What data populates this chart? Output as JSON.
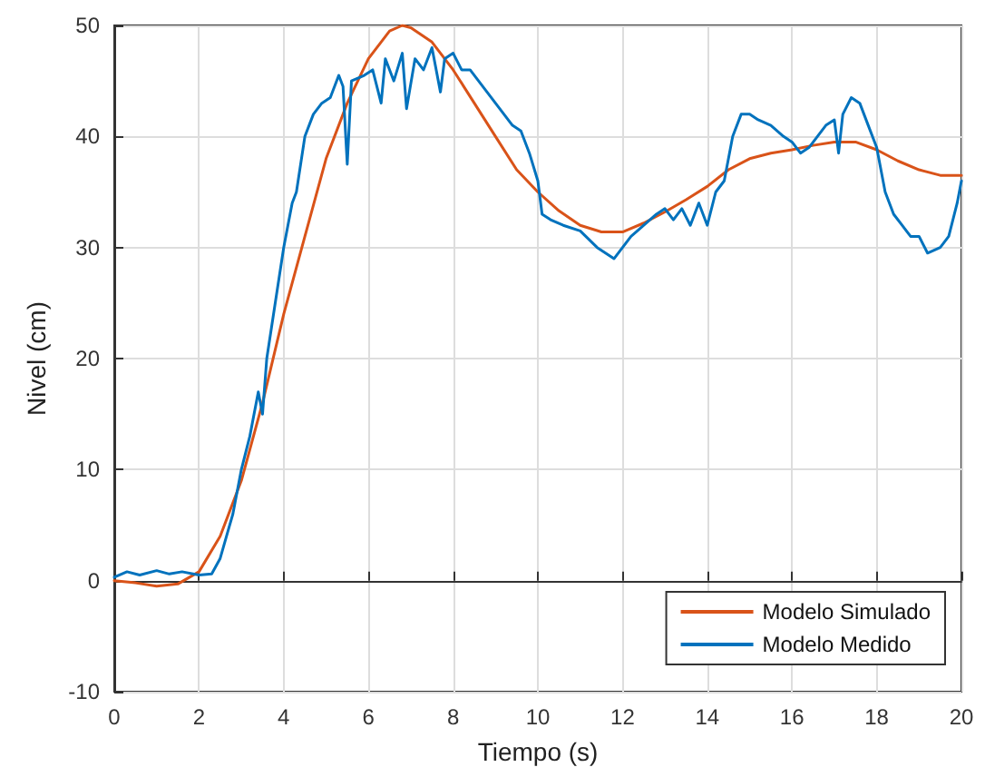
{
  "chart_data": {
    "type": "line",
    "xlabel": "Tiempo (s)",
    "ylabel": "Nivel (cm)",
    "xlim": [
      0,
      20
    ],
    "ylim": [
      -10,
      50
    ],
    "xticks": [
      0,
      2,
      4,
      6,
      8,
      10,
      12,
      14,
      16,
      18,
      20
    ],
    "yticks": [
      -10,
      0,
      10,
      20,
      30,
      40,
      50
    ],
    "grid": true,
    "legend": "bottom right",
    "marker": "none",
    "line_style": "solid",
    "series": [
      {
        "name": "Modelo Simulado",
        "color": "#d95319",
        "x": [
          0,
          0.5,
          1,
          1.5,
          2,
          2.5,
          3,
          3.5,
          4,
          4.5,
          5,
          5.5,
          6,
          6.5,
          6.8,
          7,
          7.5,
          8,
          8.5,
          9,
          9.5,
          10,
          10.5,
          11,
          11.5,
          12,
          12.5,
          13,
          13.5,
          14,
          14.5,
          15,
          15.5,
          16,
          16.5,
          17,
          17.5,
          18,
          18.5,
          19,
          19.5,
          20
        ],
        "values": [
          0,
          -0.2,
          -0.5,
          -0.3,
          0.8,
          4,
          9,
          16,
          24,
          31,
          38,
          43,
          47,
          49.5,
          50,
          49.8,
          48.5,
          46,
          43,
          40,
          37,
          35,
          33.3,
          32,
          31.4,
          31.4,
          32.2,
          33.2,
          34.3,
          35.5,
          37,
          38,
          38.5,
          38.8,
          39.2,
          39.5,
          39.5,
          38.8,
          37.8,
          37,
          36.5,
          36.5
        ]
      },
      {
        "name": "Modelo Medido",
        "color": "#0072bd",
        "x": [
          0,
          0.3,
          0.6,
          1,
          1.3,
          1.6,
          2,
          2.3,
          2.5,
          2.8,
          3,
          3.2,
          3.4,
          3.5,
          3.6,
          3.8,
          4,
          4.2,
          4.3,
          4.5,
          4.7,
          4.9,
          5.1,
          5.3,
          5.4,
          5.5,
          5.6,
          5.9,
          6.1,
          6.3,
          6.4,
          6.6,
          6.8,
          6.9,
          7.1,
          7.3,
          7.5,
          7.7,
          7.8,
          8,
          8.2,
          8.4,
          8.6,
          8.8,
          9,
          9.2,
          9.4,
          9.6,
          9.8,
          10,
          10.1,
          10.3,
          10.6,
          11,
          11.4,
          11.8,
          12,
          12.2,
          12.5,
          12.8,
          13,
          13.2,
          13.4,
          13.6,
          13.8,
          14,
          14.2,
          14.4,
          14.6,
          14.8,
          15,
          15.2,
          15.5,
          15.8,
          16,
          16.2,
          16.4,
          16.6,
          16.8,
          17,
          17.1,
          17.2,
          17.4,
          17.6,
          17.8,
          18,
          18.2,
          18.4,
          18.6,
          18.8,
          19,
          19.2,
          19.5,
          19.7,
          19.9,
          20
        ],
        "values": [
          0.3,
          0.8,
          0.5,
          0.9,
          0.6,
          0.8,
          0.5,
          0.6,
          2,
          6,
          10,
          13,
          17,
          15,
          20,
          25,
          30,
          34,
          35,
          40,
          42,
          43,
          43.5,
          45.5,
          44.5,
          37.5,
          45,
          45.5,
          46,
          43,
          47,
          45,
          47.5,
          42.5,
          47,
          46,
          48,
          44,
          47,
          47.5,
          46,
          46,
          45,
          44,
          43,
          42,
          41,
          40.5,
          38.5,
          36,
          33,
          32.5,
          32,
          31.5,
          30,
          29,
          30,
          31,
          32,
          33,
          33.5,
          32.5,
          33.5,
          32,
          34,
          32,
          35,
          36,
          40,
          42,
          42,
          41.5,
          41,
          40,
          39.5,
          38.5,
          39,
          40,
          41,
          41.5,
          38.5,
          42,
          43.5,
          43,
          41,
          39,
          35,
          33,
          32,
          31,
          31,
          29.5,
          30,
          31,
          34,
          36
        ]
      }
    ]
  }
}
